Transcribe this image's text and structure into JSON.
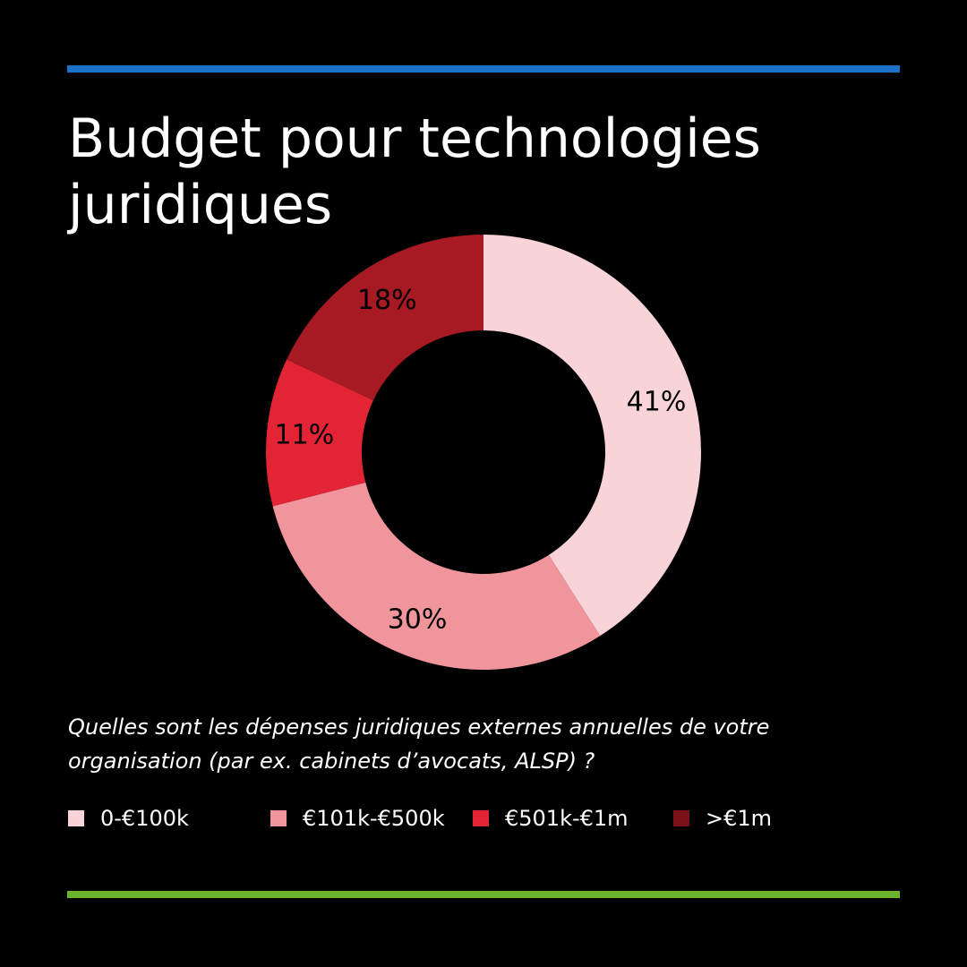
{
  "title": "Budget pour technologies juridiques",
  "question": "Quelles sont les dépenses juridiques externes annuelles de votre organisation (par ex. cabinets d’avocats, ALSP) ?",
  "colors": {
    "background": "#000000",
    "top_rule": "#1a73c9",
    "bottom_rule": "#6ab42d"
  },
  "chart_data": {
    "type": "pie",
    "variant": "donut",
    "categories": [
      "0-€100k",
      "€101k-€500k",
      "€501k-€1m",
      ">€1m"
    ],
    "values": [
      41,
      30,
      11,
      18
    ],
    "labels": [
      "41%",
      "30%",
      "11%",
      "18%"
    ],
    "colors": [
      "#f8d3d7",
      "#f0959c",
      "#e32434",
      "#a71a24"
    ],
    "label_colors": [
      "#000000",
      "#000000",
      "#000000",
      "#000000"
    ],
    "legend": {
      "position": "bottom",
      "swatch_colors": [
        "#f8d3d7",
        "#f0959c",
        "#e32434",
        "#7a1018"
      ]
    }
  }
}
